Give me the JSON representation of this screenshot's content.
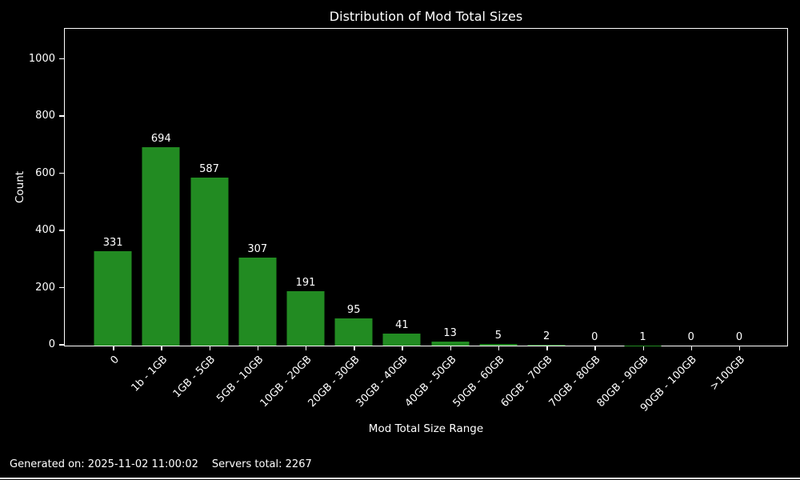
{
  "title": "Distribution of Mod Total Sizes",
  "footer": {
    "generated": "Generated on: 2025-11-02 11:00:02",
    "servers_total": "Servers total: 2267"
  },
  "chart_data": {
    "type": "bar",
    "title": "Distribution of Mod Total Sizes",
    "xlabel": "Mod Total Size Range",
    "ylabel": "Count",
    "categories": [
      "0",
      "1b - 1GB",
      "1GB - 5GB",
      "5GB - 10GB",
      "10GB - 20GB",
      "20GB - 30GB",
      "30GB - 40GB",
      "40GB - 50GB",
      "50GB - 60GB",
      "60GB - 70GB",
      "70GB - 80GB",
      "80GB - 90GB",
      "90GB - 100GB",
      ">100GB"
    ],
    "values": [
      331,
      694,
      587,
      307,
      191,
      95,
      41,
      13,
      5,
      2,
      0,
      1,
      0,
      0
    ],
    "yticks": [
      0,
      200,
      400,
      600,
      800,
      1000
    ],
    "ylim": [
      0,
      1105
    ],
    "xtick_rotation": 45,
    "bar_color": "#228b22",
    "background_color": "#000000",
    "text_color": "#ffffff",
    "grid": false,
    "legend": null
  }
}
